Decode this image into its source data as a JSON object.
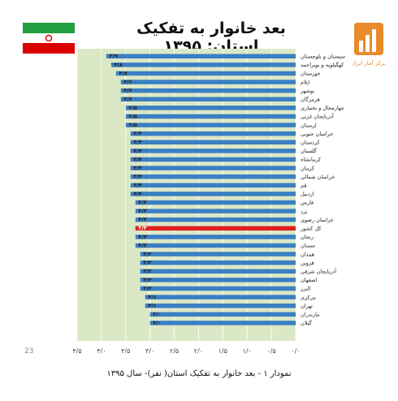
{
  "title": "بعد خانوار به تفکیک استان: ۱۳۹۵",
  "logo_text": "مرکز آمار ایران",
  "page_number": "23",
  "caption": "نمودار ۱ - بعد خانوار به تفکیک استان( نفر)- سال ۱۳۹۵",
  "colors": {
    "bar": "#3b7fc4",
    "highlight": "#e02020",
    "plot_bg": "#dbe8c6",
    "flag_green": "#239f40",
    "flag_red": "#da0000",
    "logo_orange": "#e98b2a"
  },
  "chart_data": {
    "type": "bar",
    "orientation": "horizontal",
    "title": "بعد خانوار به تفکیک استان: ۱۳۹۵",
    "xlim": [
      0,
      4.5
    ],
    "x_direction": "right-to-left",
    "xticks": [
      "۰/۰",
      "۰/۵",
      "۱/۰",
      "۱/۵",
      "۲/۰",
      "۲/۵",
      "۳/۰",
      "۳/۵",
      "۴/۰",
      "۴/۵"
    ],
    "grid": true,
    "highlight_category": "کل کشور",
    "categories": [
      "سیستان و بلوچستان",
      "کهگیلویه و بویراحمد",
      "خوزستان",
      "ایلام",
      "بوشهر",
      "هرمزگان",
      "چهارمحال و بختیاری",
      "آذربایجان غربی",
      "لرستان",
      "خراسان جنوبی",
      "کردستان",
      "گلستان",
      "کرمانشاه",
      "کرمان",
      "خراسان شمالی",
      "قم",
      "اردبیل",
      "فارس",
      "یزد",
      "خراسان رضوی",
      "کل کشور",
      "زنجان",
      "سمنان",
      "همدان",
      "قزوین",
      "آذربایجان شرقی",
      "اصفهان",
      "البرز",
      "مرکزی",
      "تهران",
      "مازندران",
      "گیلان"
    ],
    "values": [
      3.9,
      3.8,
      3.7,
      3.6,
      3.6,
      3.6,
      3.5,
      3.5,
      3.5,
      3.4,
      3.4,
      3.4,
      3.4,
      3.4,
      3.4,
      3.4,
      3.4,
      3.3,
      3.3,
      3.3,
      3.3,
      3.3,
      3.3,
      3.2,
      3.2,
      3.2,
      3.2,
      3.2,
      3.1,
      3.1,
      3.0,
      3.0
    ],
    "value_labels": [
      "۳/۹",
      "۳/۸",
      "۳/۷",
      "۳/۶",
      "۳/۶",
      "۳/۶",
      "۳/۵",
      "۳/۵",
      "۳/۵",
      "۳/۴",
      "۳/۴",
      "۳/۴",
      "۳/۴",
      "۳/۴",
      "۳/۴",
      "۳/۴",
      "۳/۴",
      "۳/۳",
      "۳/۳",
      "۳/۳",
      "۳/۳",
      "۳/۳",
      "۳/۳",
      "۳/۲",
      "۳/۲",
      "۳/۲",
      "۳/۲",
      "۳/۲",
      "۳/۱",
      "۳/۱",
      "۳/۰",
      "۳/۰"
    ]
  }
}
